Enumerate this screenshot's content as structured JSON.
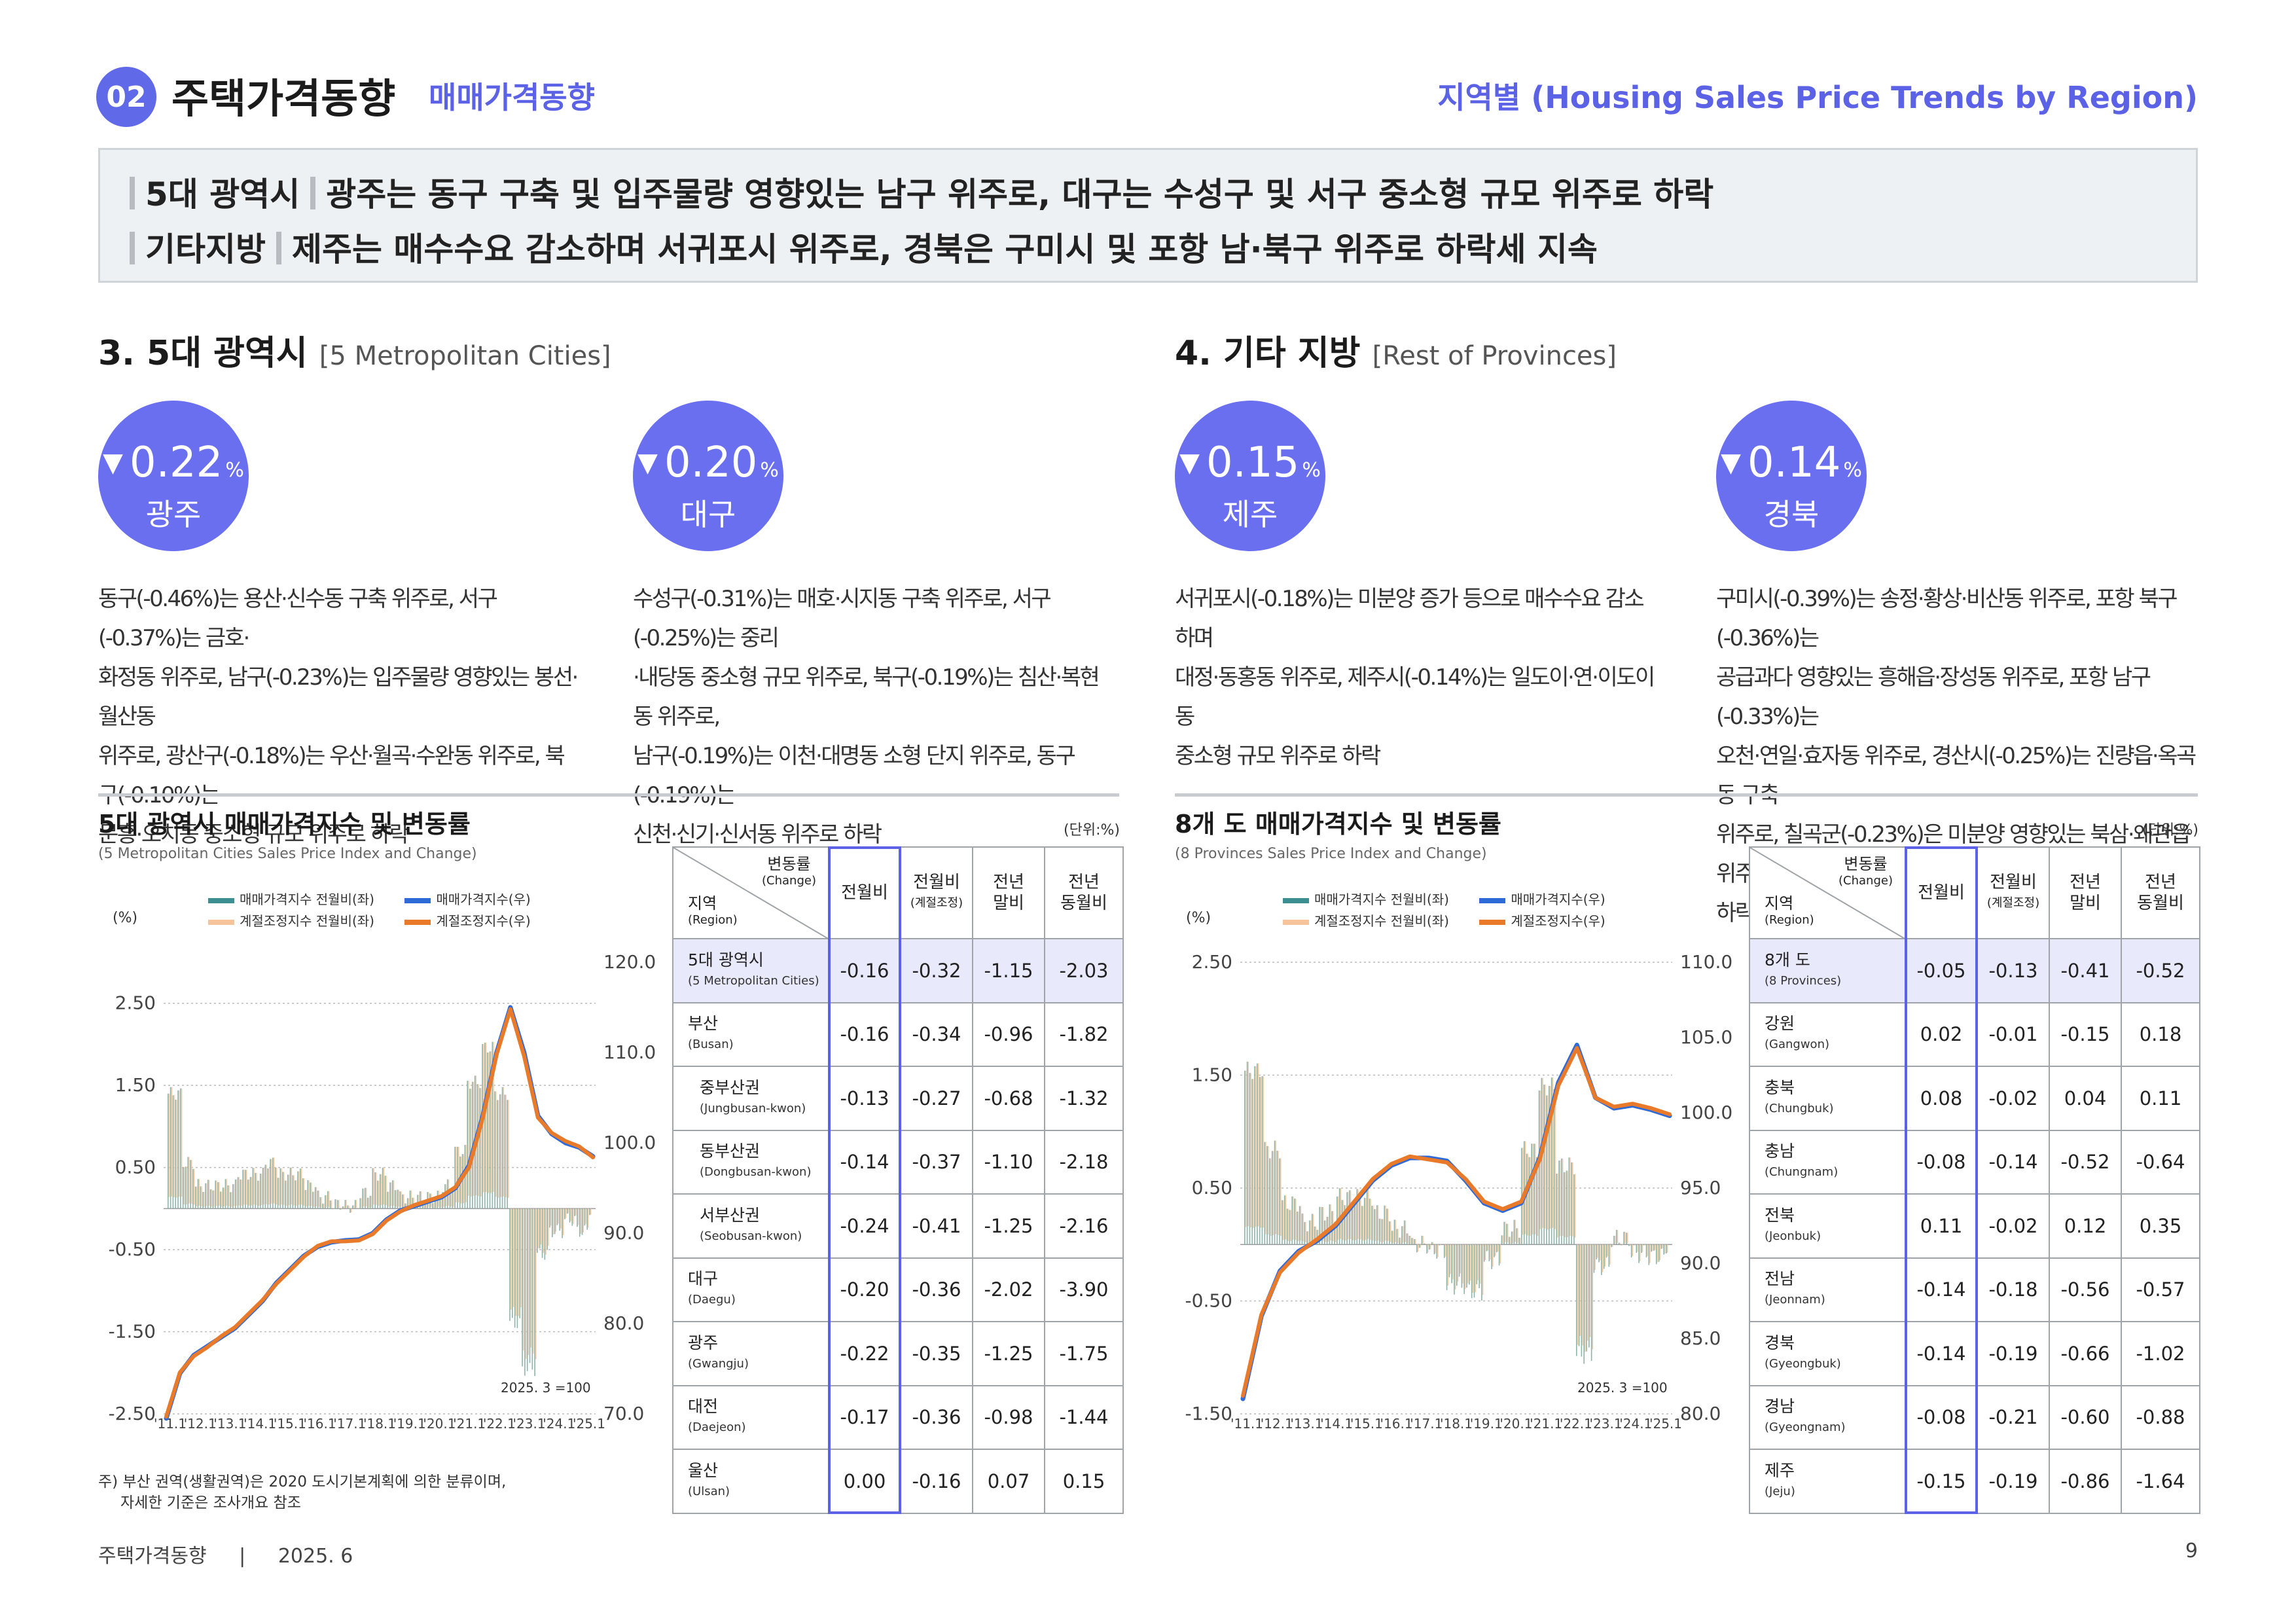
{
  "header": {
    "badge": "02",
    "title": "주택가격동향",
    "subtitle": "매매가격동향",
    "right_title": "지역별 (Housing Sales Price Trends by Region)"
  },
  "summary": {
    "line1_tag": "5대 광역시",
    "line1_text": "광주는 동구 구축 및 입주물량 영향있는 남구 위주로, 대구는 수성구 및 서구 중소형 규모 위주로 하락",
    "line2_tag": "기타지방",
    "line2_text": "제주는 매수수요 감소하며 서귀포시 위주로, 경북은 구미시 및 포항 남·북구 위주로 하락세 지속"
  },
  "left_section": {
    "heading": "3. 5대 광역시",
    "heading_en": "[5 Metropolitan Cities]",
    "circles": [
      {
        "value": "0.22",
        "unit": "%",
        "region": "광주",
        "arrow": "▼"
      },
      {
        "value": "0.20",
        "unit": "%",
        "region": "대구",
        "arrow": "▼"
      }
    ],
    "desc1": [
      "동구(-0.46%)는 용산·신수동 구축 위주로, 서구(-0.37%)는 금호·",
      "화정동 위주로, 남구(-0.23%)는 입주물량 영향있는 봉선·월산동",
      "위주로, 광산구(-0.18%)는 우산·월곡·수완동 위주로, 북구(-0.10%)는",
      "문흥·오치동 중소형 규모 위주로 하락"
    ],
    "desc2": [
      "수성구(-0.31%)는 매호·시지동 구축 위주로, 서구(-0.25%)는 중리",
      "·내당동 중소형 규모 위주로, 북구(-0.19%)는 침산·복현동 위주로,",
      "남구(-0.19%)는 이천·대명동 소형 단지 위주로, 동구(-0.19%)는",
      "신천·신기·신서동 위주로 하락"
    ]
  },
  "right_section": {
    "heading": "4. 기타 지방",
    "heading_en": "[Rest of Provinces]",
    "circles": [
      {
        "value": "0.15",
        "unit": "%",
        "region": "제주",
        "arrow": "▼"
      },
      {
        "value": "0.14",
        "unit": "%",
        "region": "경북",
        "arrow": "▼"
      }
    ],
    "desc1": [
      "서귀포시(-0.18%)는 미분양 증가 등으로 매수수요 감소하며",
      "대정·동홍동 위주로, 제주시(-0.14%)는 일도이·연·이도이동",
      "중소형 규모 위주로 하락"
    ],
    "desc2": [
      "구미시(-0.39%)는 송정·황상·비산동 위주로, 포항 북구(-0.36%)는",
      "공급과다 영향있는 흥해읍·장성동 위주로, 포항 남구(-0.33%)는",
      "오천·연일·효자동 위주로, 경산시(-0.25%)는 진량읍·옥곡동 구축",
      "위주로, 칠곡군(-0.23%)은 미분양 영향있는 북삼·왜관읍 위주로",
      "하락"
    ]
  },
  "panels": [
    {
      "title": "5대 광역시 매매가격지수 및 변동률",
      "subtitle": "(5 Metropolitan Cities Sales Price Index and Change)",
      "unit": "(단위:%)",
      "legend": [
        "매매가격지수 전월비(좌)",
        "매매가격지수(우)",
        "계절조정지수 전월비(좌)",
        "계절조정지수(우)"
      ],
      "left_axis_label": "(%)",
      "base_note": "2025. 3 =100",
      "note": [
        "주) 부산 권역(생활권역)은 2020 도시기본계획에 의한 분류이며,",
        "자세한 기준은 조사개요 참조"
      ],
      "table_header": {
        "corner_top": "변동률",
        "corner_top_en": "(Change)",
        "corner_bottom": "지역",
        "corner_bottom_en": "(Region)",
        "c1": "전월비",
        "c2": "전월비",
        "c2_sub": "(계절조정)",
        "c3a": "전년",
        "c3b": "말비",
        "c4a": "전년",
        "c4b": "동월비"
      },
      "rows": [
        {
          "name": "5대 광역시",
          "en": "(5 Metropolitan Cities)",
          "v": [
            "-0.16",
            "-0.32",
            "-1.15",
            "-2.03"
          ]
        },
        {
          "name": "부산",
          "en": "(Busan)",
          "v": [
            "-0.16",
            "-0.34",
            "-0.96",
            "-1.82"
          ]
        },
        {
          "name": "중부산권",
          "en": "(Jungbusan-kwon)",
          "v": [
            "-0.13",
            "-0.27",
            "-0.68",
            "-1.32"
          ]
        },
        {
          "name": "동부산권",
          "en": "(Dongbusan-kwon)",
          "v": [
            "-0.14",
            "-0.37",
            "-1.10",
            "-2.18"
          ]
        },
        {
          "name": "서부산권",
          "en": "(Seobusan-kwon)",
          "v": [
            "-0.24",
            "-0.41",
            "-1.25",
            "-2.16"
          ]
        },
        {
          "name": "대구",
          "en": "(Daegu)",
          "v": [
            "-0.20",
            "-0.36",
            "-2.02",
            "-3.90"
          ]
        },
        {
          "name": "광주",
          "en": "(Gwangju)",
          "v": [
            "-0.22",
            "-0.35",
            "-1.25",
            "-1.75"
          ]
        },
        {
          "name": "대전",
          "en": "(Daejeon)",
          "v": [
            "-0.17",
            "-0.36",
            "-0.98",
            "-1.44"
          ]
        },
        {
          "name": "울산",
          "en": "(Ulsan)",
          "v": [
            "0.00",
            "-0.16",
            "0.07",
            "0.15"
          ]
        }
      ]
    },
    {
      "title": "8개 도 매매가격지수 및 변동률",
      "subtitle": "(8 Provinces Sales Price Index and Change)",
      "unit": "(단위:%)",
      "legend": [
        "매매가격지수 전월비(좌)",
        "매매가격지수(우)",
        "계절조정지수 전월비(좌)",
        "계절조정지수(우)"
      ],
      "left_axis_label": "(%)",
      "base_note": "2025. 3 =100",
      "table_header": {
        "corner_top": "변동률",
        "corner_top_en": "(Change)",
        "corner_bottom": "지역",
        "corner_bottom_en": "(Region)",
        "c1": "전월비",
        "c2": "전월비",
        "c2_sub": "(계절조정)",
        "c3a": "전년",
        "c3b": "말비",
        "c4a": "전년",
        "c4b": "동월비"
      },
      "rows": [
        {
          "name": "8개 도",
          "en": "(8 Provinces)",
          "v": [
            "-0.05",
            "-0.13",
            "-0.41",
            "-0.52"
          ]
        },
        {
          "name": "강원",
          "en": "(Gangwon)",
          "v": [
            "0.02",
            "-0.01",
            "-0.15",
            "0.18"
          ]
        },
        {
          "name": "충북",
          "en": "(Chungbuk)",
          "v": [
            "0.08",
            "-0.02",
            "0.04",
            "0.11"
          ]
        },
        {
          "name": "충남",
          "en": "(Chungnam)",
          "v": [
            "-0.08",
            "-0.14",
            "-0.52",
            "-0.64"
          ]
        },
        {
          "name": "전북",
          "en": "(Jeonbuk)",
          "v": [
            "0.11",
            "-0.02",
            "0.12",
            "0.35"
          ]
        },
        {
          "name": "전남",
          "en": "(Jeonnam)",
          "v": [
            "-0.14",
            "-0.18",
            "-0.56",
            "-0.57"
          ]
        },
        {
          "name": "경북",
          "en": "(Gyeongbuk)",
          "v": [
            "-0.14",
            "-0.19",
            "-0.66",
            "-1.02"
          ]
        },
        {
          "name": "경남",
          "en": "(Gyeongnam)",
          "v": [
            "-0.08",
            "-0.21",
            "-0.60",
            "-0.88"
          ]
        },
        {
          "name": "제주",
          "en": "(Jeju)",
          "v": [
            "-0.15",
            "-0.19",
            "-0.86",
            "-1.64"
          ]
        }
      ]
    }
  ],
  "chart_data": [
    {
      "type": "bar+line",
      "title": "5대 광역시 매매가격지수 및 변동률",
      "x_ticks": [
        "'11.1",
        "'12.1",
        "'13.1",
        "'14.1",
        "'15.1",
        "'16.1",
        "'17.1",
        "'18.1",
        "'19.1",
        "'20.1",
        "'21.1",
        "'22.1",
        "'23.1",
        "'24.1",
        "'25.1"
      ],
      "y_left_ticks": [
        "2.50",
        "1.50",
        "0.50",
        "-0.50",
        "-1.50",
        "-2.50"
      ],
      "y_left_range": [
        -2.5,
        3.0
      ],
      "y_right_ticks": [
        "120.0",
        "110.0",
        "100.0",
        "90.0",
        "80.0",
        "70.0"
      ],
      "y_right_range": [
        70,
        120
      ],
      "series": [
        {
          "name": "매매가격지수(우)",
          "color": "#2f6bd8",
          "axis": "right",
          "values": [
            69.5,
            74.5,
            76.5,
            77.5,
            78.5,
            79.5,
            81.0,
            82.5,
            84.5,
            86.0,
            87.5,
            88.5,
            89.0,
            89.2,
            89.3,
            90.0,
            91.5,
            92.5,
            93.0,
            93.5,
            94.0,
            95.0,
            97.5,
            103.0,
            110.0,
            115.0,
            110.0,
            103.0,
            101.0,
            100.0,
            99.5,
            98.5
          ]
        },
        {
          "name": "계절조정지수(우)",
          "color": "#e87a2a",
          "axis": "right",
          "values": [
            69.7,
            74.6,
            76.4,
            77.4,
            78.6,
            79.6,
            81.1,
            82.6,
            84.4,
            85.9,
            87.4,
            88.6,
            89.1,
            89.1,
            89.2,
            89.9,
            91.4,
            92.4,
            93.1,
            93.6,
            94.1,
            95.1,
            97.3,
            102.8,
            109.8,
            114.8,
            109.6,
            102.8,
            101.1,
            100.2,
            99.6,
            98.4
          ]
        }
      ]
    },
    {
      "type": "bar+line",
      "title": "8개 도 매매가격지수 및 변동률",
      "x_ticks": [
        "'11.1",
        "'12.1",
        "'13.1",
        "'14.1",
        "'15.1",
        "'16.1",
        "'17.1",
        "'18.1",
        "'19.1",
        "'20.1",
        "'21.1",
        "'22.1",
        "'23.1",
        "'24.1",
        "'25.1"
      ],
      "y_left_ticks": [
        "2.50",
        "1.50",
        "0.50",
        "-0.50",
        "-1.50"
      ],
      "y_left_range": [
        -1.5,
        2.5
      ],
      "y_right_ticks": [
        "110.0",
        "105.0",
        "100.0",
        "95.0",
        "90.0",
        "85.0",
        "80.0"
      ],
      "y_right_range": [
        80,
        110
      ],
      "series": [
        {
          "name": "매매가격지수(우)",
          "color": "#2f6bd8",
          "axis": "right",
          "values": [
            81.0,
            86.5,
            89.5,
            90.8,
            91.5,
            92.5,
            94.0,
            95.5,
            96.5,
            97.0,
            97.0,
            96.8,
            95.5,
            94.0,
            93.5,
            94.0,
            97.0,
            102.0,
            104.5,
            101.0,
            100.3,
            100.5,
            100.2,
            99.8
          ]
        },
        {
          "name": "계절조정지수(우)",
          "color": "#e87a2a",
          "axis": "right",
          "values": [
            81.2,
            86.6,
            89.4,
            90.7,
            91.6,
            92.6,
            94.1,
            95.6,
            96.6,
            97.1,
            96.9,
            96.7,
            95.6,
            94.1,
            93.6,
            94.1,
            96.9,
            101.8,
            104.3,
            101.0,
            100.4,
            100.6,
            100.3,
            99.9
          ]
        }
      ]
    }
  ],
  "footer": {
    "left": "주택가격동향",
    "sep": "|",
    "date": "2025. 6",
    "page": "9"
  }
}
